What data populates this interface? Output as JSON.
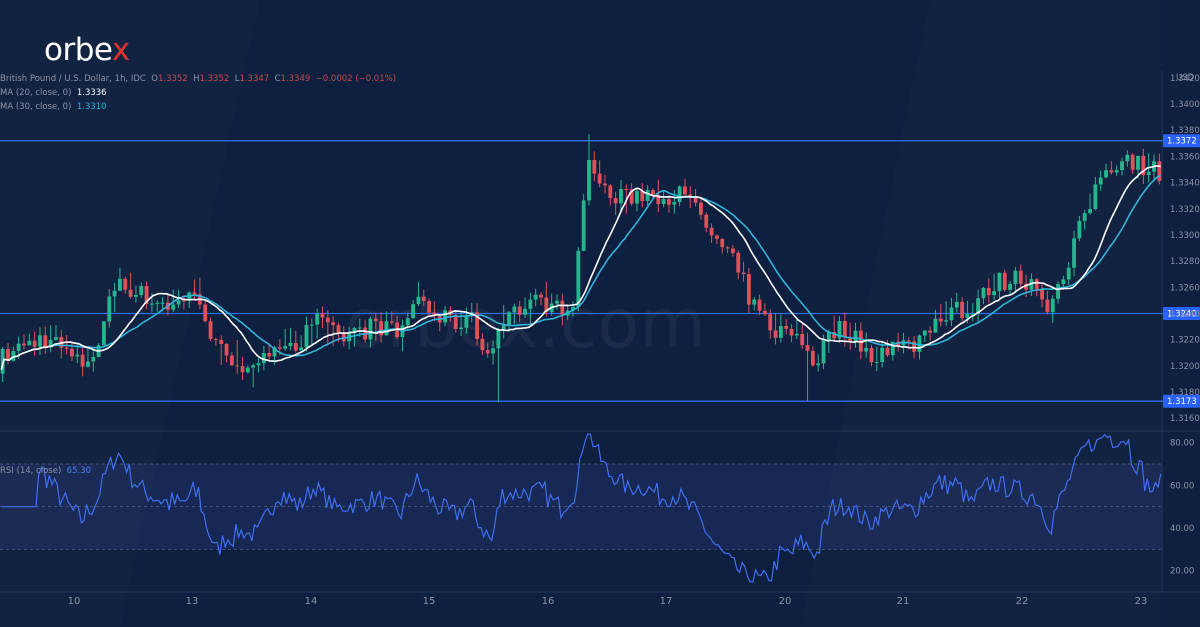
{
  "brand": {
    "logo_main": "orbe",
    "logo_x": "x",
    "watermark": "orbex.com"
  },
  "legend": {
    "symbol": "British Pound / U.S. Dollar, 1h, IDC",
    "open_label": "O",
    "open": "1.3352",
    "high_label": "H",
    "high": "1.3352",
    "low_label": "L",
    "low": "1.3347",
    "close_label": "C",
    "close": "1.3349",
    "change": "−0.0002 (−0.01%)",
    "ma20_label": "MA (20, close, 0)",
    "ma20_value": "1.3336",
    "ma30_label": "MA (30, close, 0)",
    "ma30_value": "1.3310"
  },
  "rsi_legend": {
    "label": "RSI (14, close)",
    "value": "65.30"
  },
  "price_axis": {
    "currency": "USD"
  },
  "colors": {
    "background": "#0e1f3f",
    "up": "#26b68d",
    "down": "#e0505a",
    "ma20": "#ffffff",
    "ma30": "#31b4d8",
    "rsi": "#3f6ff0",
    "level_line": "#2e6cf0",
    "level_label_bg": "#2962ff"
  },
  "chart_data": [
    {
      "type": "candlestick",
      "name": "GBPUSD 1h",
      "ylim": [
        1.3151,
        1.3426
      ],
      "y_ticks": [
        "1.3160",
        "1.3180",
        "1.3200",
        "1.3220",
        "1.3240",
        "1.3260",
        "1.3280",
        "1.3300",
        "1.3320",
        "1.3340",
        "1.3360",
        "1.3380",
        "1.3400",
        "1.3420"
      ],
      "x_tick_labels": [
        "10",
        "13",
        "14",
        "15",
        "16",
        "17",
        "20",
        "21",
        "22",
        "23"
      ],
      "levels": [
        {
          "value": 1.3372,
          "label": "1.3372"
        },
        {
          "value": 1.324,
          "label": "1.3240"
        },
        {
          "value": 1.3173,
          "label": "1.3173"
        }
      ],
      "ma_series": [
        {
          "name": "MA (20, close, 0)",
          "last": 1.3336
        },
        {
          "name": "MA (30, close, 0)",
          "last": 1.331
        }
      ],
      "anchors": [
        [
          0,
          1.3205
        ],
        [
          6,
          1.3212
        ],
        [
          12,
          1.3218
        ],
        [
          18,
          1.3222
        ],
        [
          24,
          1.3212
        ],
        [
          30,
          1.32
        ],
        [
          36,
          1.3212
        ],
        [
          44,
          1.3268
        ],
        [
          52,
          1.3255
        ],
        [
          62,
          1.3247
        ],
        [
          68,
          1.3248
        ],
        [
          74,
          1.3258
        ],
        [
          80,
          1.3215
        ],
        [
          88,
          1.3206
        ],
        [
          96,
          1.3192
        ],
        [
          104,
          1.3222
        ],
        [
          112,
          1.3215
        ],
        [
          118,
          1.3235
        ],
        [
          126,
          1.3222
        ],
        [
          134,
          1.3225
        ],
        [
          142,
          1.3232
        ],
        [
          150,
          1.3222
        ],
        [
          156,
          1.3254
        ],
        [
          164,
          1.3237
        ],
        [
          170,
          1.3232
        ],
        [
          176,
          1.3238
        ],
        [
          184,
          1.3205
        ],
        [
          188,
          1.3238
        ],
        [
          196,
          1.3244
        ],
        [
          204,
          1.325
        ],
        [
          210,
          1.3242
        ],
        [
          216,
          1.3255
        ],
        [
          220,
          1.3358
        ],
        [
          228,
          1.333
        ],
        [
          234,
          1.3327
        ],
        [
          240,
          1.3333
        ],
        [
          248,
          1.333
        ],
        [
          254,
          1.3332
        ],
        [
          262,
          1.3318
        ],
        [
          268,
          1.3296
        ],
        [
          276,
          1.3276
        ],
        [
          284,
          1.324
        ],
        [
          292,
          1.3226
        ],
        [
          300,
          1.3223
        ],
        [
          306,
          1.3202
        ],
        [
          312,
          1.3227
        ],
        [
          318,
          1.3228
        ],
        [
          326,
          1.3208
        ],
        [
          334,
          1.3215
        ],
        [
          342,
          1.3215
        ],
        [
          350,
          1.3232
        ],
        [
          358,
          1.3248
        ],
        [
          364,
          1.3238
        ],
        [
          372,
          1.3262
        ],
        [
          380,
          1.3267
        ],
        [
          388,
          1.3265
        ],
        [
          394,
          1.3245
        ],
        [
          400,
          1.327
        ],
        [
          406,
          1.331
        ],
        [
          414,
          1.335
        ],
        [
          422,
          1.336
        ],
        [
          430,
          1.3352
        ],
        [
          434,
          1.3349
        ]
      ],
      "spikes": [
        {
          "index": 186,
          "low": 1.3172
        },
        {
          "index": 220,
          "high": 1.3377
        },
        {
          "index": 303,
          "low": 1.3173
        }
      ]
    },
    {
      "type": "line",
      "name": "RSI (14, close)",
      "ylim": [
        10,
        85
      ],
      "y_ticks": [
        "20.00",
        "40.00",
        "60.00",
        "80.00"
      ],
      "band": [
        30,
        70
      ],
      "midline": 50,
      "last": 65.3
    }
  ]
}
